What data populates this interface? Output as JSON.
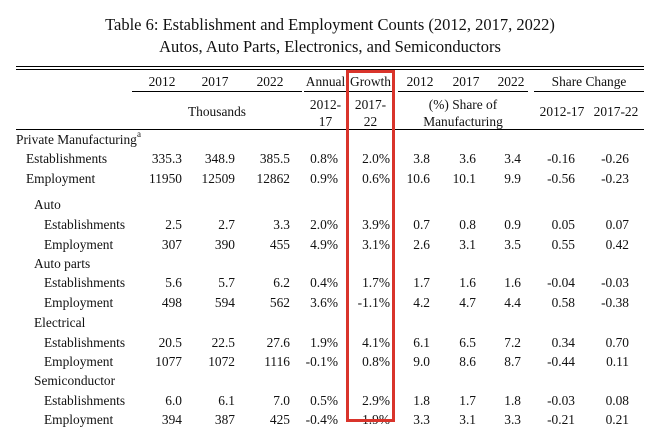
{
  "title": {
    "line1": "Table 6: Establishment and Employment Counts (2012, 2017, 2022)",
    "line2": "Autos, Auto Parts, Electronics, and Semiconductors"
  },
  "header": {
    "years": [
      "2012",
      "2017",
      "2022"
    ],
    "annual": "Annual",
    "growth": "Growth",
    "share_years": [
      "2012",
      "2017",
      "2022"
    ],
    "share_change": "Share Change",
    "thousands": "Thousands",
    "g1_top": "2012-",
    "g1_bot": "17",
    "g2_top": "2017-",
    "g2_bot": "22",
    "pct_share_1": "(%) Share of",
    "pct_share_2": "Manufacturing",
    "sc1": "2012-17",
    "sc2": "2017-22"
  },
  "sections": {
    "private": {
      "label": "Private Manufacturing",
      "sup": "a",
      "est": {
        "label": "Establishments",
        "vals": [
          "335.3",
          "348.9",
          "385.5",
          "0.8%",
          "2.0%",
          "3.8",
          "3.6",
          "3.4",
          "-0.16",
          "-0.26"
        ]
      },
      "emp": {
        "label": "Employment",
        "vals": [
          "11950",
          "12509",
          "12862",
          "0.9%",
          "0.6%",
          "10.6",
          "10.1",
          "9.9",
          "-0.56",
          "-0.23"
        ]
      }
    },
    "auto": {
      "label": "Auto",
      "est": {
        "label": "Establishments",
        "vals": [
          "2.5",
          "2.7",
          "3.3",
          "2.0%",
          "3.9%",
          "0.7",
          "0.8",
          "0.9",
          "0.05",
          "0.07"
        ]
      },
      "emp": {
        "label": "Employment",
        "vals": [
          "307",
          "390",
          "455",
          "4.9%",
          "3.1%",
          "2.6",
          "3.1",
          "3.5",
          "0.55",
          "0.42"
        ]
      }
    },
    "parts": {
      "label": "Auto parts",
      "est": {
        "label": "Establishments",
        "vals": [
          "5.6",
          "5.7",
          "6.2",
          "0.4%",
          "1.7%",
          "1.7",
          "1.6",
          "1.6",
          "-0.04",
          "-0.03"
        ]
      },
      "emp": {
        "label": "Employment",
        "vals": [
          "498",
          "594",
          "562",
          "3.6%",
          "-1.1%",
          "4.2",
          "4.7",
          "4.4",
          "0.58",
          "-0.38"
        ]
      }
    },
    "elec": {
      "label": "Electrical",
      "est": {
        "label": "Establishments",
        "vals": [
          "20.5",
          "22.5",
          "27.6",
          "1.9%",
          "4.1%",
          "6.1",
          "6.5",
          "7.2",
          "0.34",
          "0.70"
        ]
      },
      "emp": {
        "label": "Employment",
        "vals": [
          "1077",
          "1072",
          "1116",
          "-0.1%",
          "0.8%",
          "9.0",
          "8.6",
          "8.7",
          "-0.44",
          "0.11"
        ]
      }
    },
    "semi": {
      "label": "Semiconductor",
      "est": {
        "label": "Establishments",
        "vals": [
          "6.0",
          "6.1",
          "7.0",
          "0.5%",
          "2.9%",
          "1.8",
          "1.7",
          "1.8",
          "-0.03",
          "0.08"
        ]
      },
      "emp": {
        "label": "Employment",
        "vals": [
          "394",
          "387",
          "425",
          "-0.4%",
          "1.9%",
          "3.3",
          "3.1",
          "3.3",
          "-0.21",
          "0.21"
        ]
      }
    }
  },
  "colors": {
    "highlight": "#d9342b"
  }
}
